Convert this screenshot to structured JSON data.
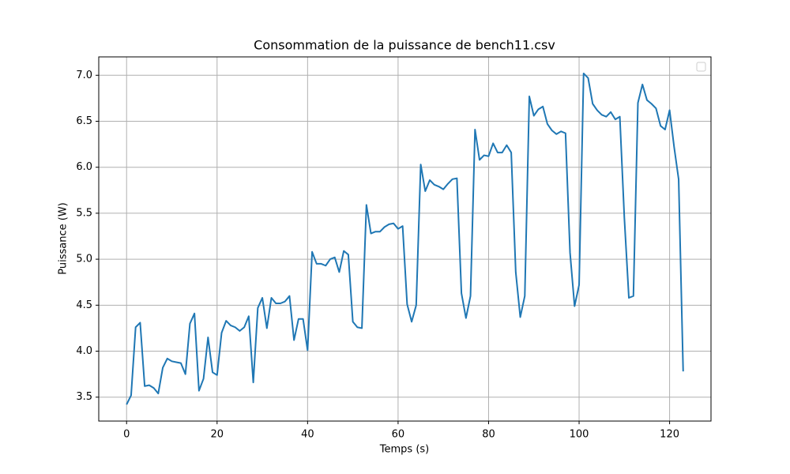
{
  "chart_data": {
    "type": "line",
    "title": "Consommation de la puissance de bench11.csv",
    "xlabel": "Temps (s)",
    "ylabel": "Puissance (W)",
    "color": "#1f77b4",
    "grid": true,
    "x": [
      0,
      1,
      2,
      3,
      4,
      5,
      6,
      7,
      8,
      9,
      10,
      11,
      12,
      13,
      14,
      15,
      16,
      17,
      18,
      19,
      20,
      21,
      22,
      23,
      24,
      25,
      26,
      27,
      28,
      29,
      30,
      31,
      32,
      33,
      34,
      35,
      36,
      37,
      38,
      39,
      40,
      41,
      42,
      43,
      44,
      45,
      46,
      47,
      48,
      49,
      50,
      51,
      52,
      53,
      54,
      55,
      56,
      57,
      58,
      59,
      60,
      61,
      62,
      63,
      64,
      65,
      66,
      67,
      68,
      69,
      70,
      71,
      72,
      73,
      74,
      75,
      76,
      77,
      78,
      79,
      80,
      81,
      82,
      83,
      84,
      85,
      86,
      87,
      88,
      89,
      90,
      91,
      92,
      93,
      94,
      95,
      96,
      97,
      98,
      99,
      100,
      101,
      102,
      103,
      104,
      105,
      106,
      107,
      108,
      109,
      110,
      111,
      112,
      113,
      114,
      115,
      116,
      117,
      118,
      119,
      120,
      121,
      122,
      123
    ],
    "values": [
      3.42,
      3.52,
      4.26,
      4.31,
      3.62,
      3.63,
      3.6,
      3.54,
      3.82,
      3.92,
      3.89,
      3.88,
      3.87,
      3.75,
      4.3,
      4.41,
      3.57,
      3.7,
      4.15,
      3.77,
      3.74,
      4.2,
      4.33,
      4.28,
      4.26,
      4.22,
      4.26,
      4.38,
      3.66,
      4.47,
      4.58,
      4.25,
      4.58,
      4.52,
      4.52,
      4.54,
      4.6,
      4.12,
      4.35,
      4.35,
      4.01,
      5.08,
      4.95,
      4.95,
      4.93,
      5.0,
      5.02,
      4.86,
      5.09,
      5.05,
      4.32,
      4.26,
      4.25,
      5.59,
      5.28,
      5.3,
      5.3,
      5.35,
      5.38,
      5.39,
      5.33,
      5.36,
      4.51,
      4.32,
      4.5,
      6.03,
      5.74,
      5.86,
      5.81,
      5.79,
      5.76,
      5.82,
      5.87,
      5.88,
      4.63,
      4.36,
      4.6,
      6.41,
      6.08,
      6.13,
      6.12,
      6.26,
      6.16,
      6.16,
      6.24,
      6.16,
      4.86,
      4.37,
      4.6,
      6.77,
      6.56,
      6.63,
      6.66,
      6.47,
      6.4,
      6.36,
      6.39,
      6.37,
      5.07,
      4.49,
      4.72,
      7.02,
      6.97,
      6.69,
      6.62,
      6.57,
      6.55,
      6.6,
      6.52,
      6.55,
      5.45,
      4.58,
      4.6,
      6.7,
      6.9,
      6.73,
      6.69,
      6.64,
      6.45,
      6.41,
      6.62,
      6.22,
      5.87,
      3.78
    ],
    "xlim": [
      -6.15,
      129.15
    ],
    "ylim": [
      3.24,
      7.2
    ],
    "xticks": [
      0,
      20,
      40,
      60,
      80,
      100,
      120
    ],
    "yticks": [
      3.5,
      {
        "value": 4,
        "label": "4.0"
      },
      4.5,
      {
        "value": 5,
        "label": "5.0"
      },
      5.5,
      {
        "value": 6,
        "label": "6.0"
      },
      6.5,
      {
        "value": 7,
        "label": "7.0"
      }
    ]
  }
}
